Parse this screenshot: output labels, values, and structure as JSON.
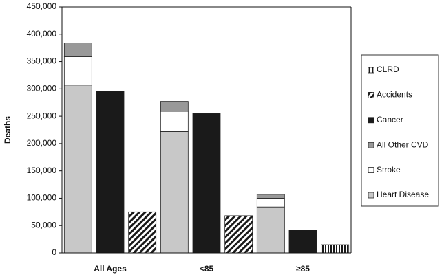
{
  "chart_data": {
    "type": "bar",
    "y_label": "Deaths",
    "categories": [
      "All Ages",
      "<85",
      "≥85"
    ],
    "series": [
      {
        "name": "Heart Disease",
        "color": "#c8c8c8",
        "stacked": true,
        "values": [
          307000,
          222000,
          84000
        ]
      },
      {
        "name": "Stroke",
        "color": "#ffffff",
        "stacked": true,
        "values": [
          52000,
          37000,
          16000
        ]
      },
      {
        "name": "All Other CVD",
        "color": "#999999",
        "stacked": true,
        "values": [
          25000,
          18000,
          7000
        ]
      },
      {
        "name": "Cancer",
        "color": "#1a1a1a",
        "values": [
          296000,
          255000,
          42000
        ]
      },
      {
        "name": "Accidents",
        "color": "#1a1a1a",
        "pattern": "diagonal",
        "values": [
          75000,
          68000,
          null
        ]
      },
      {
        "name": "CLRD",
        "color": "#1a1a1a",
        "pattern": "vertical",
        "values": [
          null,
          null,
          15000
        ]
      }
    ],
    "ylim": [
      0,
      450000
    ],
    "yticks": [
      0,
      {
        "value": 50000,
        "label": "50,000"
      },
      {
        "value": 100000,
        "label": "100,000"
      },
      {
        "value": 150000,
        "label": "150,000"
      },
      {
        "value": 200000,
        "label": "200,000"
      },
      {
        "value": 250000,
        "label": "250,000"
      },
      {
        "value": 300000,
        "label": "300,000"
      },
      {
        "value": 350000,
        "label": "350,000"
      },
      {
        "value": 400000,
        "label": "400,000"
      },
      {
        "value": 450000,
        "label": "450,000"
      }
    ],
    "legend": "right"
  }
}
